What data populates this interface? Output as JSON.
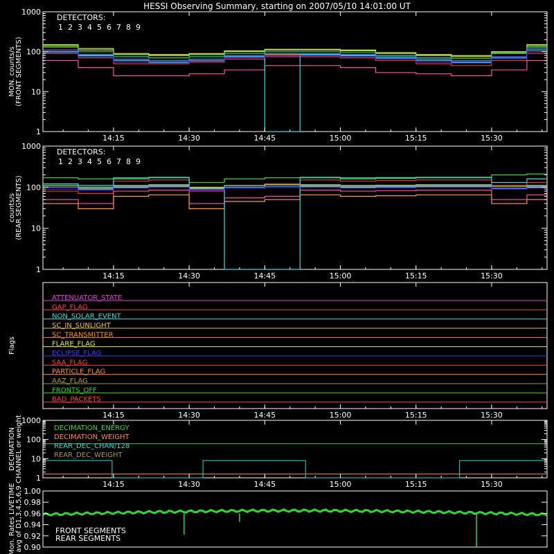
{
  "title": "HESSI Observing Summary, starting on 2007/05/10 14:01:00 UT",
  "time_ticks": [
    "14:15",
    "14:30",
    "14:45",
    "15:00",
    "15:15",
    "15:30"
  ],
  "detector_colors": [
    "#ff2a2a",
    "#ff4da6",
    "#ff9f2a",
    "#e8e84d",
    "#9be34d",
    "#2fd92f",
    "#33e0e0",
    "#4d7dff",
    "#2f2fff"
  ],
  "chart_data": [
    {
      "type": "line",
      "ylabel": "MON. counts/s\n(FRONT SEGMENTS)",
      "ylog": true,
      "ylim": [
        1,
        1000
      ],
      "ytick_labels": [
        "1",
        "10",
        "100",
        "1000"
      ],
      "legend_title": "DETECTORS:",
      "legend_numbers": [
        "1",
        "2",
        "3",
        "4",
        "5",
        "6",
        "7",
        "8",
        "9"
      ],
      "x": [
        "14:01",
        "14:08",
        "14:15",
        "14:22",
        "14:30",
        "14:37",
        "14:45",
        "14:52",
        "15:00",
        "15:07",
        "15:15",
        "15:22",
        "15:30",
        "15:37"
      ],
      "series": [
        {
          "values": [
            90,
            70,
            50,
            50,
            55,
            65,
            75,
            75,
            70,
            60,
            50,
            45,
            60,
            90
          ]
        },
        {
          "values": [
            60,
            40,
            25,
            25,
            28,
            35,
            45,
            45,
            40,
            30,
            28,
            25,
            35,
            60
          ]
        },
        {
          "values": [
            100,
            80,
            60,
            60,
            65,
            75,
            85,
            85,
            80,
            70,
            60,
            55,
            70,
            100
          ]
        },
        {
          "values": [
            150,
            120,
            90,
            85,
            90,
            105,
            115,
            115,
            110,
            95,
            85,
            80,
            100,
            150
          ]
        },
        {
          "values": [
            140,
            110,
            85,
            80,
            85,
            100,
            110,
            110,
            105,
            90,
            80,
            75,
            95,
            140
          ]
        },
        {
          "values": [
            130,
            100,
            75,
            70,
            75,
            90,
            100,
            100,
            95,
            80,
            70,
            68,
            90,
            130
          ]
        },
        {
          "values": [
            100,
            80,
            60,
            55,
            60,
            75,
            1,
            85,
            80,
            70,
            60,
            55,
            70,
            110
          ]
        },
        {
          "values": [
            110,
            85,
            65,
            60,
            65,
            80,
            90,
            90,
            85,
            75,
            65,
            60,
            75,
            120
          ]
        },
        {
          "values": [
            95,
            75,
            55,
            52,
            58,
            70,
            80,
            80,
            75,
            65,
            55,
            52,
            68,
            100
          ]
        }
      ]
    },
    {
      "type": "line",
      "ylabel": "counts/s\n(REAR SEGMENTS)",
      "ylog": true,
      "ylim": [
        1,
        1000
      ],
      "ytick_labels": [
        "1",
        "10",
        "100",
        "1000"
      ],
      "legend_title": "DETECTORS:",
      "legend_numbers": [
        "1",
        "2",
        "3",
        "4",
        "5",
        "6",
        "7",
        "8",
        "9"
      ],
      "x": [
        "14:01",
        "14:08",
        "14:15",
        "14:22",
        "14:30",
        "14:37",
        "14:45",
        "14:52",
        "15:00",
        "15:07",
        "15:15",
        "15:22",
        "15:30",
        "15:37"
      ],
      "series": [
        {
          "values": [
            80,
            70,
            140,
            150,
            80,
            110,
            120,
            150,
            140,
            145,
            150,
            150,
            110,
            130
          ]
        },
        {
          "values": [
            50,
            40,
            80,
            85,
            40,
            55,
            60,
            85,
            80,
            82,
            85,
            85,
            50,
            65
          ]
        },
        {
          "values": [
            40,
            30,
            60,
            65,
            30,
            45,
            50,
            65,
            60,
            62,
            65,
            65,
            40,
            50
          ]
        },
        {
          "values": [
            100,
            90,
            100,
            105,
            95,
            100,
            105,
            105,
            100,
            102,
            105,
            105,
            95,
            100
          ]
        },
        {
          "values": [
            110,
            100,
            110,
            115,
            100,
            110,
            115,
            115,
            110,
            112,
            115,
            115,
            105,
            110
          ]
        },
        {
          "values": [
            170,
            160,
            170,
            175,
            130,
            160,
            170,
            175,
            170,
            172,
            175,
            175,
            200,
            210
          ]
        },
        {
          "values": [
            120,
            110,
            160,
            170,
            90,
            1,
            1,
            170,
            160,
            165,
            170,
            170,
            130,
            160
          ]
        },
        {
          "values": [
            100,
            95,
            105,
            110,
            90,
            100,
            105,
            110,
            105,
            107,
            110,
            110,
            95,
            105
          ]
        },
        {
          "values": [
            90,
            85,
            95,
            100,
            85,
            95,
            100,
            100,
            95,
            97,
            100,
            100,
            90,
            95
          ]
        }
      ]
    },
    {
      "type": "line",
      "ylabel": "Flags",
      "flags": [
        {
          "name": "ATTENUATOR_STATE",
          "color": "#e23bd8"
        },
        {
          "name": "GAP_FLAG",
          "color": "#ff3a3a"
        },
        {
          "name": "NON_SOLAR_EVENT",
          "color": "#33dada"
        },
        {
          "name": "SC_IN_SUNLIGHT",
          "color": "#e8c13a"
        },
        {
          "name": "SC_TRANSMITTER",
          "color": "#ff8a2a"
        },
        {
          "name": "FLARE_FLAG",
          "color": "#e8e84d"
        },
        {
          "name": "ECLIPSE_FLAG",
          "color": "#3a3aff"
        },
        {
          "name": "SAA_FLAG",
          "color": "#ff3a3a"
        },
        {
          "name": "PARTICLE_FLAG",
          "color": "#ff8a2a"
        },
        {
          "name": "AAZ_FLAG",
          "color": "#a09a3a"
        },
        {
          "name": "FRONTS_OFF",
          "color": "#2fd92f"
        },
        {
          "name": "BAD_PACKETS",
          "color": "#ff3a3a"
        }
      ]
    },
    {
      "type": "line",
      "ylabel": "DECIMATION\nCHANNEL or weight",
      "ylog": true,
      "ylim": [
        1,
        1000
      ],
      "ytick_labels": [
        "1",
        "10",
        "100",
        "1000"
      ],
      "legend": [
        {
          "name": "DECIMATION_ENERGY",
          "color": "#2fd92f"
        },
        {
          "name": "DECIMATION_WEIGHT",
          "color": "#ff8a2a"
        },
        {
          "name": "REAR_DEC_CHAN/128",
          "color": "#33dada"
        },
        {
          "name": "REAR_DEC_WEIGHT",
          "color": "#a09a3a"
        }
      ]
    },
    {
      "type": "line",
      "ylabel": "Mon. Rates LIVETIME\navg of D1,3,4,5,6,9",
      "ylim": [
        0.9,
        1.0
      ],
      "ytick_labels": [
        "0.90",
        "0.92",
        "0.94",
        "0.96",
        "0.98",
        "1.00"
      ],
      "legend": [
        {
          "name": "FRONT SEGMENTS",
          "color": "#2fd92f"
        },
        {
          "name": "REAR SEGMENTS",
          "color": "#1e8f1e"
        }
      ]
    }
  ]
}
